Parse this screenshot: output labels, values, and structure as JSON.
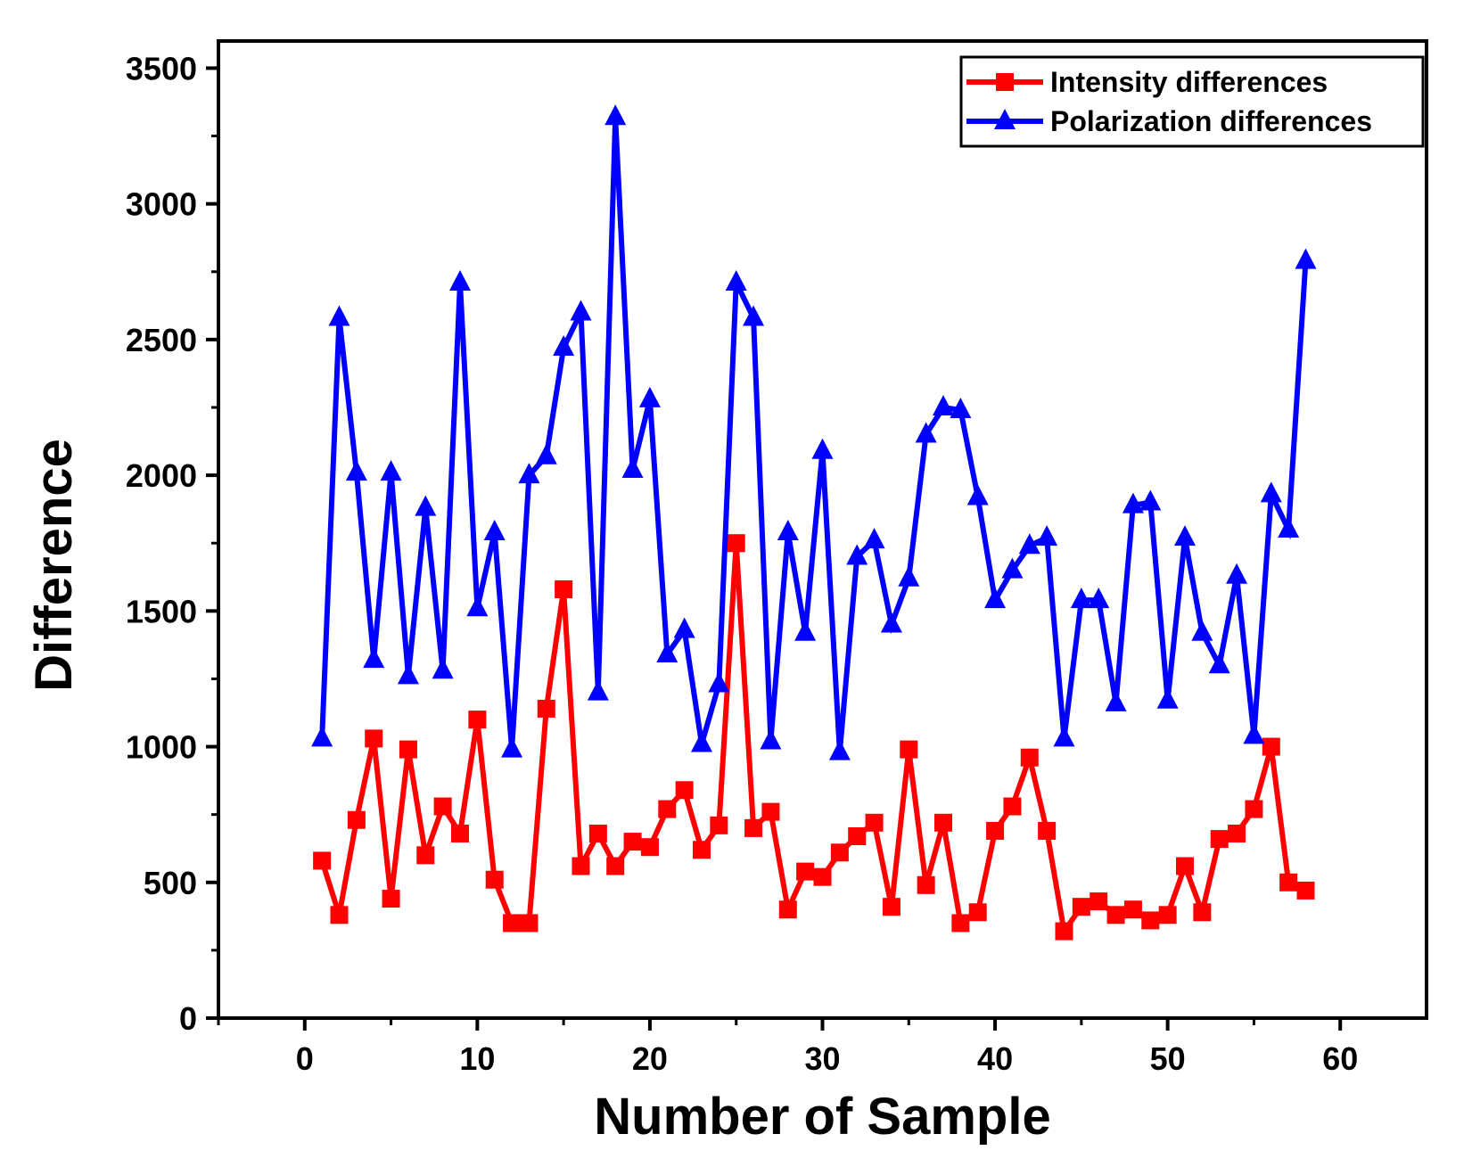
{
  "chart_data": {
    "type": "line",
    "xlabel": "Number of Sample",
    "ylabel": "Difference",
    "xlim": [
      -5,
      65
    ],
    "ylim": [
      0,
      3600
    ],
    "xticks": [
      0,
      10,
      20,
      30,
      40,
      50,
      60
    ],
    "yticks": [
      0,
      500,
      1000,
      1500,
      2000,
      2500,
      3000,
      3500
    ],
    "legend_position": "top-right",
    "grid": false,
    "x": [
      1,
      2,
      3,
      4,
      5,
      6,
      7,
      8,
      9,
      10,
      11,
      12,
      13,
      14,
      15,
      16,
      17,
      18,
      19,
      20,
      21,
      22,
      23,
      24,
      25,
      26,
      27,
      28,
      29,
      30,
      31,
      32,
      33,
      34,
      35,
      36,
      37,
      38,
      39,
      40,
      41,
      42,
      43,
      44,
      45,
      46,
      47,
      48,
      49,
      50,
      51,
      52,
      53,
      54,
      55,
      56,
      57,
      58
    ],
    "series": [
      {
        "name": "Intensity differences",
        "color": "#ff0000",
        "marker": "square",
        "values": [
          580,
          380,
          730,
          1030,
          440,
          990,
          600,
          780,
          680,
          1100,
          510,
          350,
          350,
          1140,
          1580,
          560,
          680,
          560,
          650,
          630,
          770,
          840,
          620,
          710,
          1750,
          700,
          760,
          400,
          540,
          520,
          610,
          670,
          720,
          410,
          990,
          490,
          720,
          350,
          390,
          690,
          780,
          960,
          690,
          320,
          410,
          430,
          380,
          400,
          360,
          380,
          560,
          390,
          660,
          680,
          770,
          1000,
          500,
          470
        ]
      },
      {
        "name": "Polarization differences",
        "color": "#0000ff",
        "marker": "triangle",
        "values": [
          1030,
          2580,
          2010,
          1320,
          2010,
          1260,
          1880,
          1280,
          2710,
          1510,
          1790,
          990,
          2000,
          2070,
          2470,
          2600,
          1200,
          3320,
          2020,
          2280,
          1340,
          1430,
          1010,
          1230,
          2710,
          2580,
          1020,
          1790,
          1420,
          2090,
          980,
          1700,
          1760,
          1450,
          1620,
          2150,
          2250,
          2240,
          1920,
          1540,
          1650,
          1740,
          1770,
          1030,
          1540,
          1540,
          1160,
          1890,
          1900,
          1170,
          1770,
          1420,
          1300,
          1630,
          1040,
          1930,
          1800,
          2790
        ]
      }
    ]
  }
}
